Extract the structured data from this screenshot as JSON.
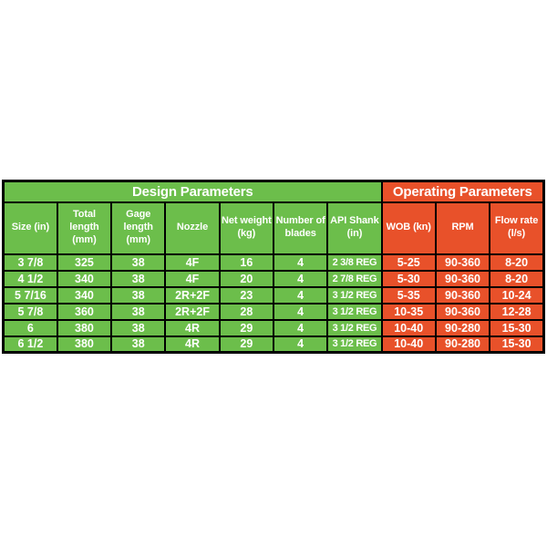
{
  "colors": {
    "green": "#6CBE4B",
    "orange": "#E8512A",
    "border": "#000000",
    "text": "#FFFFFF",
    "background": "#FFFFFF"
  },
  "chart_data": {
    "type": "table",
    "group_headers": [
      {
        "label": "Design Parameters",
        "span": 7,
        "theme": "green"
      },
      {
        "label": "Operating Parameters",
        "span": 3,
        "theme": "orange"
      }
    ],
    "columns": [
      {
        "key": "size",
        "label": "Size (in)",
        "theme": "green"
      },
      {
        "key": "total_length",
        "label": "Total length (mm)",
        "theme": "green"
      },
      {
        "key": "gage_length",
        "label": "Gage length (mm)",
        "theme": "green"
      },
      {
        "key": "nozzle",
        "label": "Nozzle",
        "theme": "green"
      },
      {
        "key": "net_weight",
        "label": "Net weight (kg)",
        "theme": "green"
      },
      {
        "key": "num_blades",
        "label": "Number of blades",
        "theme": "green"
      },
      {
        "key": "api_shank",
        "label": "API Shank (in)",
        "theme": "green"
      },
      {
        "key": "wob",
        "label": "WOB (kn)",
        "theme": "orange"
      },
      {
        "key": "rpm",
        "label": "RPM",
        "theme": "orange"
      },
      {
        "key": "flow_rate",
        "label": "Flow rate (l/s)",
        "theme": "orange"
      }
    ],
    "rows": [
      [
        "3 7/8",
        "325",
        "38",
        "4F",
        "16",
        "4",
        "2 3/8 REG",
        "5-25",
        "90-360",
        "8-20"
      ],
      [
        "4 1/2",
        "340",
        "38",
        "4F",
        "20",
        "4",
        "2 7/8 REG",
        "5-30",
        "90-360",
        "8-20"
      ],
      [
        "5 7/16",
        "340",
        "38",
        "2R+2F",
        "23",
        "4",
        "3 1/2 REG",
        "5-35",
        "90-360",
        "10-24"
      ],
      [
        "5 7/8",
        "360",
        "38",
        "2R+2F",
        "28",
        "4",
        "3 1/2 REG",
        "10-35",
        "90-360",
        "12-28"
      ],
      [
        "6",
        "380",
        "38",
        "4R",
        "29",
        "4",
        "3 1/2 REG",
        "10-40",
        "90-280",
        "15-30"
      ],
      [
        "6 1/2",
        "380",
        "38",
        "4R",
        "29",
        "4",
        "3 1/2 REG",
        "10-40",
        "90-280",
        "15-30"
      ]
    ]
  }
}
